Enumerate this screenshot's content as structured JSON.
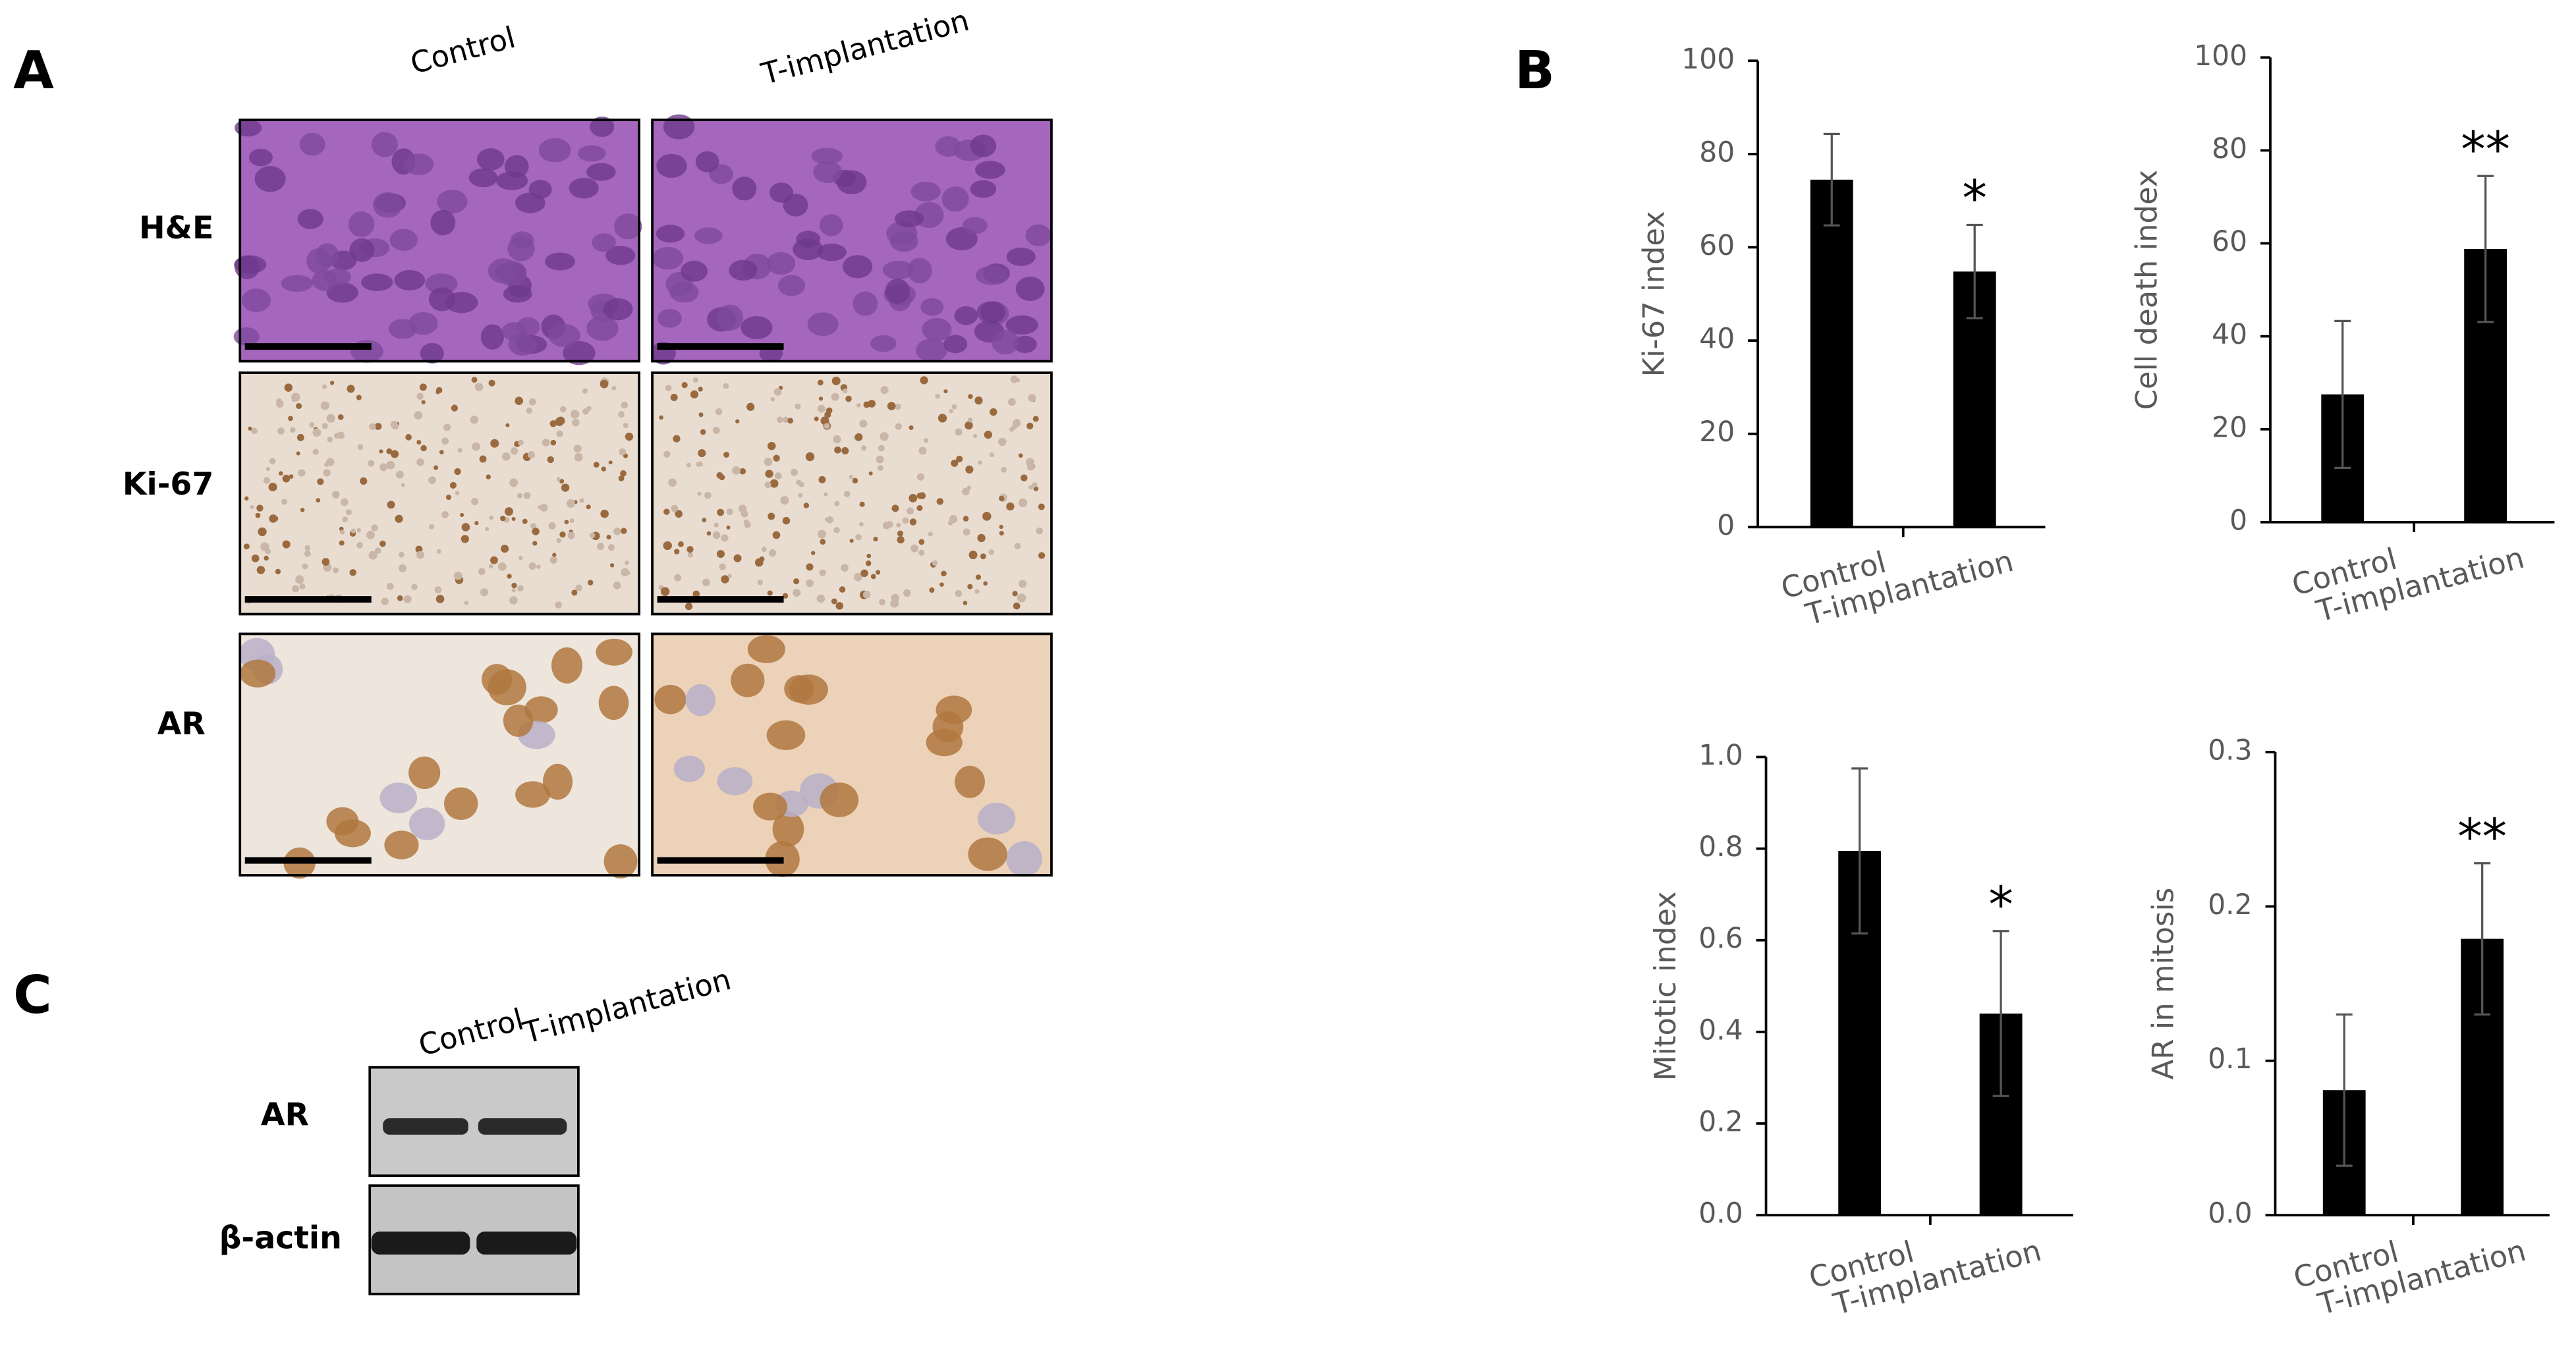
{
  "panel_labels": [
    "A",
    "B",
    "C"
  ],
  "panel_a": {
    "columns": [
      "Control",
      "T-implantation"
    ],
    "rows": [
      "H&E",
      "Ki-67",
      "AR"
    ]
  },
  "panel_c": {
    "lanes": [
      "Control",
      "T-implantation"
    ],
    "rows": [
      "AR",
      "β-actin"
    ]
  },
  "chart_data": [
    {
      "type": "bar",
      "y_label": "Ki-67 index",
      "categories": [
        "Control",
        "T-implantation"
      ],
      "values": [
        74.5,
        54.8
      ],
      "errors": [
        9.8,
        10.0
      ],
      "color": "#000000",
      "ylim": [
        0,
        100
      ],
      "yticks": [
        0,
        20,
        40,
        60,
        80,
        100
      ],
      "annotations": [
        {
          "text": "*",
          "x": "T-implantation"
        }
      ]
    },
    {
      "type": "bar",
      "y_label": "Cell death index",
      "categories": [
        "Control",
        "T-implantation"
      ],
      "values": [
        27.5,
        58.8
      ],
      "errors": [
        15.8,
        15.7
      ],
      "color": "#000000",
      "ylim": [
        0,
        100
      ],
      "yticks": [
        0,
        20,
        40,
        60,
        80,
        100
      ],
      "annotations": [
        {
          "text": "**",
          "x": "T-implantation"
        }
      ]
    },
    {
      "type": "bar",
      "y_label": "Mitotic index",
      "categories": [
        "Control",
        "T-implantation"
      ],
      "values": [
        0.795,
        0.44
      ],
      "errors": [
        0.18,
        0.18
      ],
      "color": "#000000",
      "ylim": [
        0,
        1
      ],
      "yticks": [
        {
          "value": 0,
          "label": "0.0"
        },
        0.2,
        0.4,
        0.6,
        0.8,
        {
          "value": 1,
          "label": "1.0"
        }
      ],
      "annotations": [
        {
          "text": "*",
          "x": "T-implantation"
        }
      ]
    },
    {
      "type": "bar",
      "y_label": "AR in mitosis",
      "categories": [
        "Control",
        "T-implantation"
      ],
      "values": [
        0.081,
        0.179
      ],
      "errors": [
        0.049,
        0.049
      ],
      "color": "#000000",
      "ylim": [
        0,
        0.3
      ],
      "yticks": [
        {
          "value": 0,
          "label": "0.0"
        },
        0.1,
        0.2,
        0.3
      ],
      "annotations": [
        {
          "text": "**",
          "x": "T-implantation"
        }
      ]
    }
  ]
}
